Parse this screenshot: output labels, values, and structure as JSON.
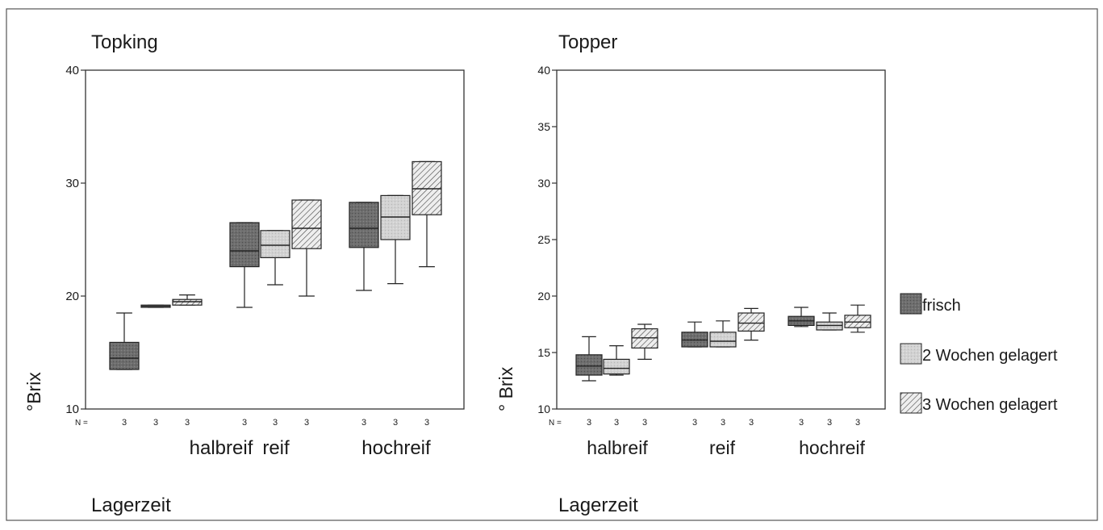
{
  "colors": {
    "ink": "#1a1a1a",
    "frisch_fill": "#6e6e6e",
    "gelagert2_fill": "#d2d2d2",
    "gelagert3_fill": "#eeeeee",
    "hatch": "#444444"
  },
  "legend": {
    "placement": "right",
    "items": [
      {
        "label": "frisch",
        "fill": "dark-gray"
      },
      {
        "label": "2 Wochen gelagert",
        "fill": "light-gray"
      },
      {
        "label": "3 Wochen gelagert",
        "fill": "hatched"
      }
    ]
  },
  "chart_data": [
    {
      "type": "boxplot",
      "title": "Topking",
      "xlabel": "Lagerzeit",
      "ylabel": "°Brix",
      "ylim": [
        10,
        40
      ],
      "yticks": [
        10,
        20,
        30,
        40
      ],
      "n_label": "N =",
      "categories": [
        "halbreif",
        "reif",
        "hochreif"
      ],
      "series": [
        {
          "name": "frisch",
          "n": [
            3,
            3,
            3
          ],
          "whisker_low": [
            13.5,
            19.0,
            20.5
          ],
          "q1": [
            13.5,
            22.6,
            24.3
          ],
          "median": [
            14.5,
            24.0,
            26.0
          ],
          "q3": [
            15.9,
            26.5,
            28.3
          ],
          "whisker_high": [
            18.5,
            26.5,
            28.3
          ]
        },
        {
          "name": "2 Wochen gelagert",
          "n": [
            3,
            3,
            3
          ],
          "whisker_low": [
            19.0,
            21.0,
            21.1
          ],
          "q1": [
            19.0,
            23.4,
            25.0
          ],
          "median": [
            19.1,
            24.5,
            27.0
          ],
          "q3": [
            19.2,
            25.8,
            28.9
          ],
          "whisker_high": [
            19.2,
            25.8,
            28.9
          ]
        },
        {
          "name": "3 Wochen gelagert",
          "n": [
            3,
            3,
            3
          ],
          "whisker_low": [
            19.2,
            20.0,
            22.6
          ],
          "q1": [
            19.2,
            24.2,
            27.2
          ],
          "median": [
            19.5,
            26.0,
            29.5
          ],
          "q3": [
            19.7,
            28.5,
            31.9
          ],
          "whisker_high": [
            20.1,
            28.5,
            31.9
          ]
        }
      ]
    },
    {
      "type": "boxplot",
      "title": "Topper",
      "xlabel": "Lagerzeit",
      "ylabel": "° Brix",
      "ylim": [
        10,
        40
      ],
      "yticks": [
        10,
        15,
        20,
        25,
        30,
        35,
        40
      ],
      "n_label": "N =",
      "categories": [
        "halbreif",
        "reif",
        "hochreif"
      ],
      "series": [
        {
          "name": "frisch",
          "n": [
            3,
            3,
            3
          ],
          "whisker_low": [
            12.5,
            15.5,
            17.3
          ],
          "q1": [
            13.0,
            15.5,
            17.4
          ],
          "median": [
            13.8,
            16.1,
            17.8
          ],
          "q3": [
            14.8,
            16.8,
            18.2
          ],
          "whisker_high": [
            16.4,
            17.7,
            19.0
          ]
        },
        {
          "name": "2 Wochen gelagert",
          "n": [
            3,
            3,
            3
          ],
          "whisker_low": [
            13.0,
            15.5,
            17.0
          ],
          "q1": [
            13.1,
            15.5,
            17.0
          ],
          "median": [
            13.6,
            16.0,
            17.4
          ],
          "q3": [
            14.4,
            16.8,
            17.7
          ],
          "whisker_high": [
            15.6,
            17.8,
            18.5
          ]
        },
        {
          "name": "3 Wochen gelagert",
          "n": [
            3,
            3,
            3
          ],
          "whisker_low": [
            14.4,
            16.1,
            16.8
          ],
          "q1": [
            15.4,
            16.9,
            17.2
          ],
          "median": [
            16.3,
            17.6,
            17.7
          ],
          "q3": [
            17.1,
            18.5,
            18.3
          ],
          "whisker_high": [
            17.5,
            18.9,
            19.2
          ]
        }
      ]
    }
  ]
}
